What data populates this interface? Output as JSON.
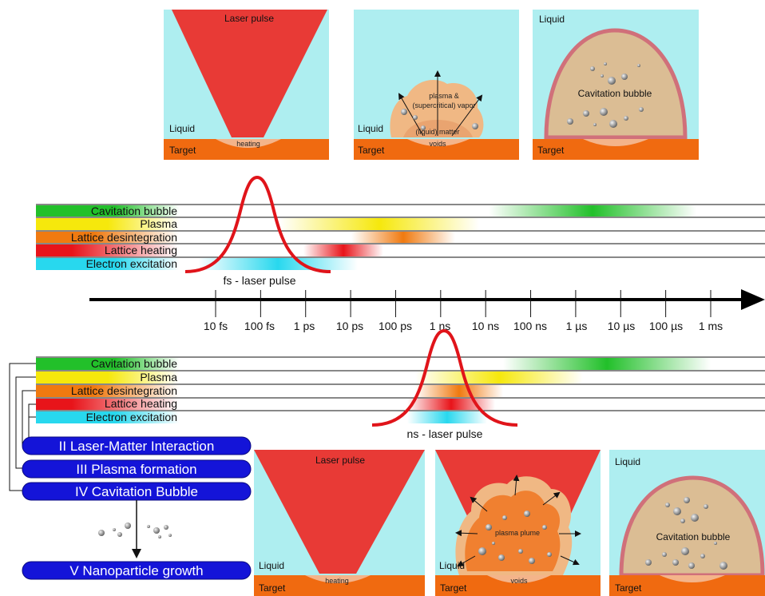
{
  "top_panels": {
    "panel1": {
      "laser": "Laser pulse",
      "liquid": "Liquid",
      "heating": "heating",
      "target": "Target"
    },
    "panel2": {
      "plasma_line1": "plasma &",
      "plasma_line2": "(supercritical) vapor",
      "matter": "(liquid) matter",
      "voids": "voids",
      "liquid": "Liquid",
      "target": "Target"
    },
    "panel3": {
      "liquid": "Liquid",
      "bubble": "Cavitation bubble",
      "target": "Target"
    }
  },
  "fs_timeline": {
    "pulse_label": "fs - laser pulse",
    "tracks": [
      {
        "label": "Cavitation bubble",
        "start_color": "#22c02a"
      },
      {
        "label": "Plasma",
        "start_color": "#f6e80c"
      },
      {
        "label": "Lattice desintegration",
        "start_color": "#f07a10"
      },
      {
        "label": "Lattice heating",
        "start_color": "#e8141a"
      },
      {
        "label": "Electron excitation",
        "start_color": "#28d8ee"
      }
    ]
  },
  "time_axis": {
    "ticks": [
      "10 fs",
      "100 fs",
      "1 ps",
      "10 ps",
      "100 ps",
      "1 ns",
      "10 ns",
      "100 ns",
      "1 µs",
      "10 µs",
      "100 µs",
      "1 ms"
    ]
  },
  "ns_timeline": {
    "pulse_label": "ns - laser pulse",
    "tracks": [
      {
        "label": "Cavitation bubble",
        "start_color": "#22c02a"
      },
      {
        "label": "Plasma",
        "start_color": "#f6e80c"
      },
      {
        "label": "Lattice desintegration",
        "start_color": "#f07a10"
      },
      {
        "label": "Lattice heating",
        "start_color": "#e8141a"
      },
      {
        "label": "Electron excitation",
        "start_color": "#28d8ee"
      }
    ]
  },
  "stages": [
    {
      "label": "II Laser-Matter Interaction"
    },
    {
      "label": "III Plasma formation"
    },
    {
      "label": "IV Cavitation Bubble"
    },
    {
      "label": "V Nanoparticle growth"
    }
  ],
  "bottom_panels": {
    "panel1": {
      "laser": "Laser pulse",
      "liquid": "Liquid",
      "heating": "heating",
      "target": "Target"
    },
    "panel2": {
      "plume": "plasma plume",
      "voids": "voids",
      "liquid": "Liquid",
      "target": "Target"
    },
    "panel3": {
      "liquid": "Liquid",
      "bubble": "Cavitation bubble",
      "target": "Target"
    }
  },
  "colors": {
    "liquid": "#aeeef0",
    "target": "#f06a10",
    "laser": "#e83a36",
    "bubble_fill": "#dbbd94",
    "bubble_rim": "#d0707a",
    "pulse": "#e0141a",
    "stage_box": "#1414d8",
    "plasma_orange": "#f08030"
  }
}
